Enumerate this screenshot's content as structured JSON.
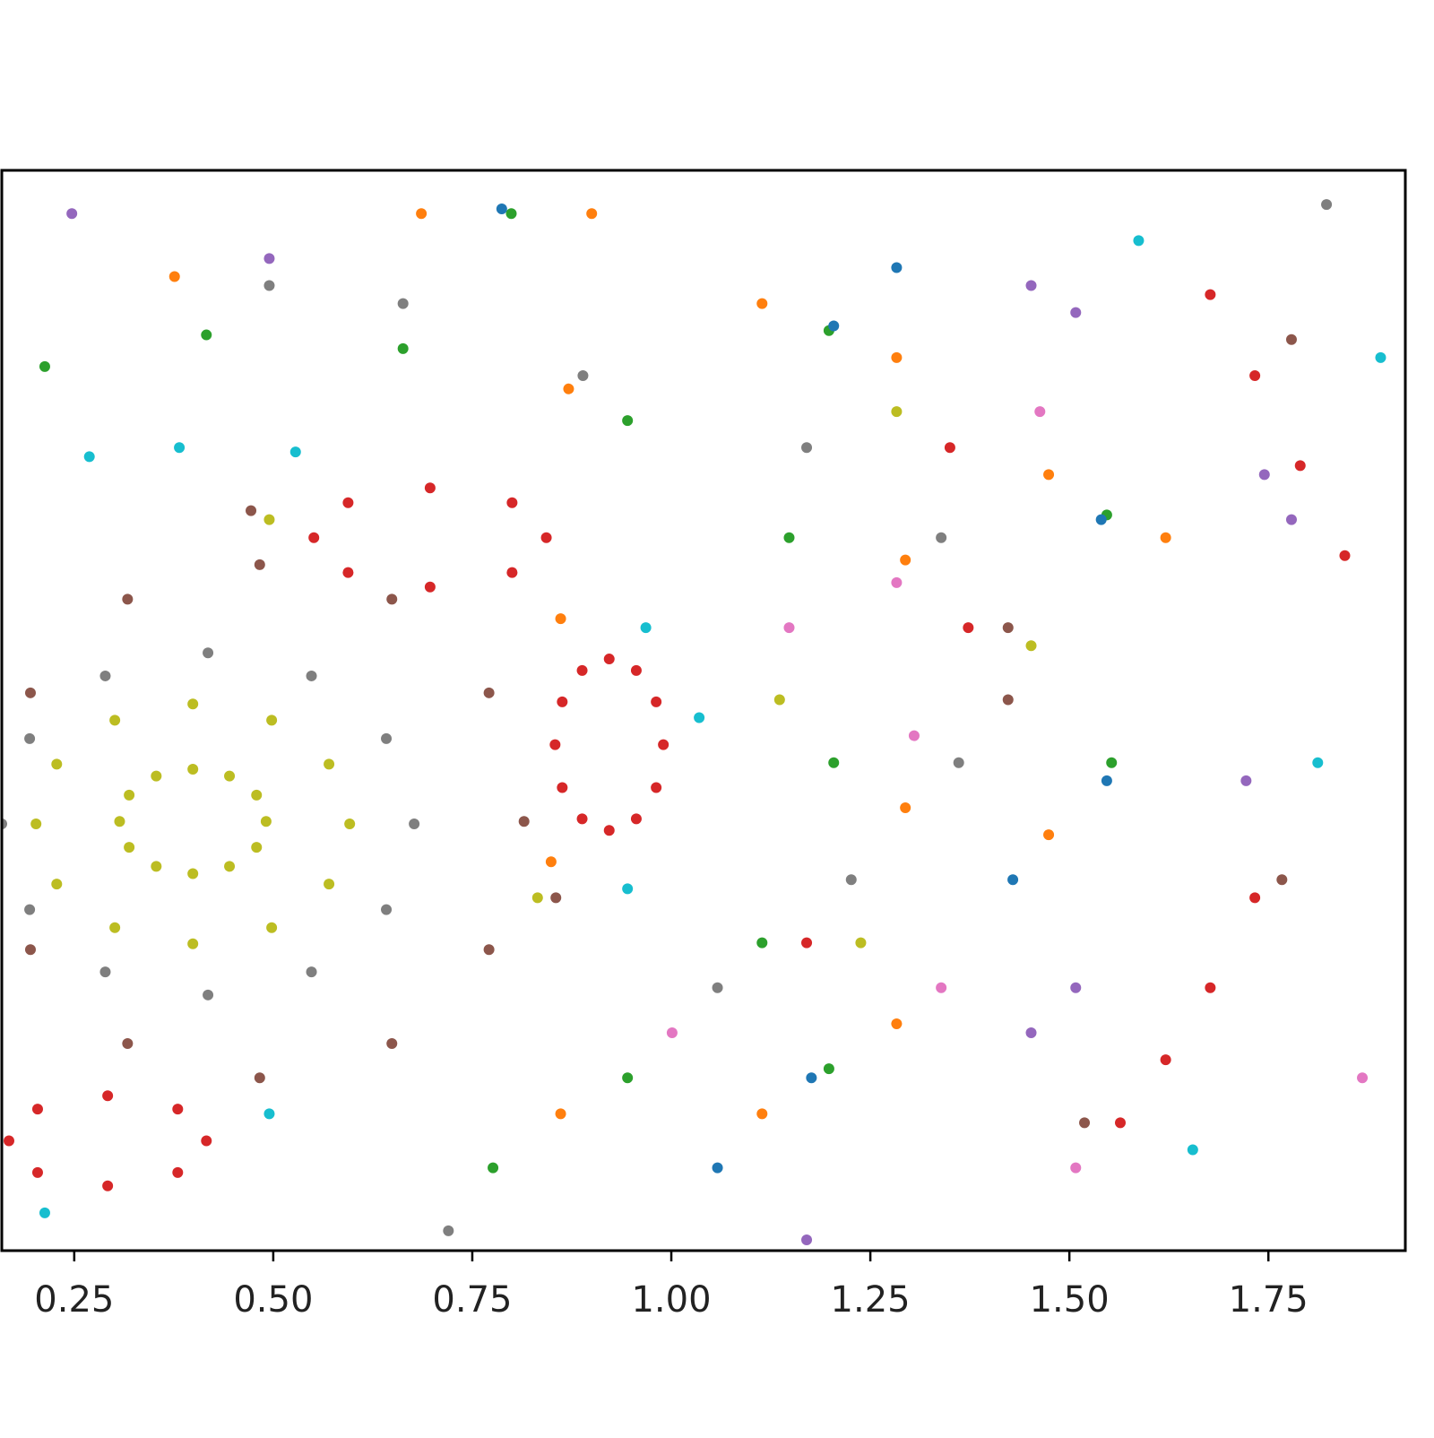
{
  "chart_data": {
    "type": "scatter",
    "xlim": [
      0.159,
      1.922
    ],
    "ylim": [
      -1.5,
      1.5
    ],
    "xticks": [
      0.25,
      {
        "value": 0.5,
        "label": "0.50"
      },
      0.75,
      {
        "value": 1.0,
        "label": "1.00"
      },
      1.25,
      {
        "value": 1.5,
        "label": "1.50"
      },
      1.75
    ],
    "series": [
      {
        "color": "#bcbd22",
        "x": [
          0.491,
          0.479,
          0.445,
          0.399,
          0.353,
          0.319,
          0.307,
          0.319,
          0.353,
          0.399,
          0.445,
          0.479,
          0.596,
          0.57,
          0.498,
          0.399,
          0.301,
          0.228,
          0.202,
          0.228,
          0.301,
          0.399,
          0.498,
          0.57,
          0.495,
          1.136,
          0.832,
          1.283,
          1.452,
          1.238
        ],
        "values": [
          -0.308,
          -0.235,
          -0.182,
          -0.163,
          -0.182,
          -0.235,
          -0.308,
          -0.38,
          -0.433,
          -0.453,
          -0.433,
          -0.38,
          -0.315,
          -0.149,
          -0.027,
          0.018,
          -0.027,
          -0.149,
          -0.315,
          -0.482,
          -0.603,
          -0.648,
          -0.603,
          -0.482,
          0.53,
          0.03,
          -0.52,
          0.83,
          0.18,
          -0.645
        ]
      },
      {
        "color": "#7f7f7f",
        "x": [
          0.677,
          0.642,
          0.548,
          0.418,
          0.289,
          0.194,
          0.159,
          0.194,
          0.289,
          0.418,
          0.548,
          0.642,
          0.495,
          0.663,
          0.889,
          1.17,
          1.339,
          1.361,
          1.226,
          1.058,
          0.72,
          1.823
        ],
        "values": [
          -0.315,
          -0.078,
          0.096,
          0.16,
          0.096,
          -0.078,
          -0.315,
          -0.553,
          -0.726,
          -0.79,
          -0.726,
          -0.553,
          1.18,
          1.13,
          0.93,
          0.73,
          0.48,
          -0.145,
          -0.47,
          -0.77,
          -1.445,
          1.405
        ]
      },
      {
        "color": "#8c564b",
        "x": [
          0.815,
          0.771,
          0.649,
          0.483,
          0.317,
          0.195,
          0.195,
          0.317,
          0.483,
          0.649,
          0.771,
          0.472,
          0.855,
          1.423,
          1.423,
          1.779,
          1.767,
          1.519
        ],
        "values": [
          -0.308,
          0.049,
          0.309,
          0.405,
          0.309,
          0.049,
          -0.664,
          -0.925,
          -1.02,
          -0.925,
          -0.664,
          0.555,
          -0.52,
          0.23,
          0.03,
          1.03,
          -0.47,
          -1.145
        ]
      },
      {
        "color": "#d62728",
        "x": [
          0.99,
          0.981,
          0.956,
          0.922,
          0.888,
          0.863,
          0.854,
          0.863,
          0.888,
          0.922,
          0.956,
          0.981,
          0.843,
          0.8,
          0.697,
          0.594,
          0.551,
          0.594,
          0.697,
          0.8,
          0.416,
          0.38,
          0.292,
          0.204,
          0.168,
          0.204,
          0.292,
          0.38,
          1.677,
          1.733,
          1.79,
          1.846,
          1.564,
          1.621,
          1.677,
          1.733,
          1.373,
          1.35,
          1.17
        ],
        "values": [
          -0.095,
          0.024,
          0.111,
          0.143,
          0.111,
          0.024,
          -0.095,
          -0.214,
          -0.301,
          -0.333,
          -0.301,
          -0.214,
          0.48,
          0.577,
          0.618,
          0.577,
          0.48,
          0.383,
          0.343,
          0.383,
          -1.195,
          -1.107,
          -1.07,
          -1.107,
          -1.195,
          -1.283,
          -1.32,
          -1.283,
          1.155,
          0.93,
          0.68,
          0.43,
          -1.145,
          -0.97,
          -0.77,
          -0.52,
          0.23,
          0.73,
          -0.645
        ]
      },
      {
        "color": "#2ca02c",
        "x": [
          1.204,
          1.148,
          0.945,
          0.663,
          0.416,
          0.213,
          1.114,
          0.945,
          0.776,
          0.799,
          1.198,
          1.547,
          1.553,
          1.198
        ],
        "values": [
          -0.145,
          0.48,
          0.805,
          1.005,
          1.043,
          0.955,
          -0.645,
          -1.02,
          -1.27,
          1.38,
          1.055,
          0.543,
          -0.145,
          -0.995
        ]
      },
      {
        "color": "#1f77b4",
        "x": [
          0.787,
          1.204,
          1.54,
          1.547,
          1.176,
          1.429,
          1.283,
          1.058
        ],
        "values": [
          1.393,
          1.068,
          0.53,
          -0.195,
          -1.02,
          -0.47,
          1.23,
          -1.27
        ]
      },
      {
        "color": "#ff7f0e",
        "x": [
          0.686,
          0.9,
          1.114,
          1.283,
          1.474,
          1.621,
          1.474,
          1.283,
          1.114,
          0.376,
          0.871,
          1.294,
          1.294,
          0.861,
          0.861,
          0.849
        ],
        "values": [
          1.38,
          1.38,
          1.13,
          0.98,
          0.655,
          0.48,
          -0.345,
          -0.87,
          -1.12,
          1.205,
          0.893,
          0.418,
          -0.27,
          -1.12,
          0.255,
          -0.42
        ]
      },
      {
        "color": "#9467bd",
        "x": [
          1.452,
          1.508,
          1.745,
          1.779,
          1.722,
          1.452,
          1.508,
          1.17,
          0.247,
          0.495
        ],
        "values": [
          1.18,
          1.105,
          0.655,
          0.53,
          -0.195,
          -0.895,
          -0.77,
          -1.47,
          1.38,
          1.255
        ]
      },
      {
        "color": "#e377c2",
        "x": [
          1.283,
          1.305,
          1.463,
          1.868,
          1.148,
          1.339,
          1.001,
          1.508
        ],
        "values": [
          0.355,
          -0.07,
          0.83,
          -1.02,
          0.23,
          -0.77,
          -0.895,
          -1.27
        ]
      },
      {
        "color": "#17becf",
        "x": [
          0.382,
          0.269,
          0.528,
          0.968,
          1.035,
          0.945,
          0.495,
          0.213,
          1.812,
          1.587,
          1.891,
          1.655
        ],
        "values": [
          0.73,
          0.705,
          0.718,
          0.23,
          -0.02,
          -0.495,
          -1.12,
          -1.395,
          -0.145,
          1.305,
          0.98,
          -1.22
        ]
      }
    ]
  }
}
